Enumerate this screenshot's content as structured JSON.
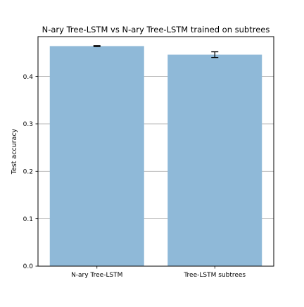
{
  "chart_data": {
    "type": "bar",
    "title": "N-ary Tree-LSTM vs N-ary Tree-LSTM trained on subtrees",
    "xlabel": "",
    "ylabel": "Test accuracy",
    "categories": [
      "N-ary Tree-LSTM",
      "Tree-LSTM subtrees"
    ],
    "values": [
      0.464,
      0.446
    ],
    "errors": [
      0.001,
      0.006
    ],
    "ylim": [
      0,
      0.484
    ],
    "yticks": [
      0.0,
      0.1,
      0.2,
      0.3,
      0.4
    ],
    "ytick_labels": [
      "0.0",
      "0.1",
      "0.2",
      "0.3",
      "0.4"
    ],
    "grid": "horizontal",
    "bar_color": "#8fb9d8",
    "grid_color": "#b0b0b0",
    "error_color": "#000000"
  }
}
